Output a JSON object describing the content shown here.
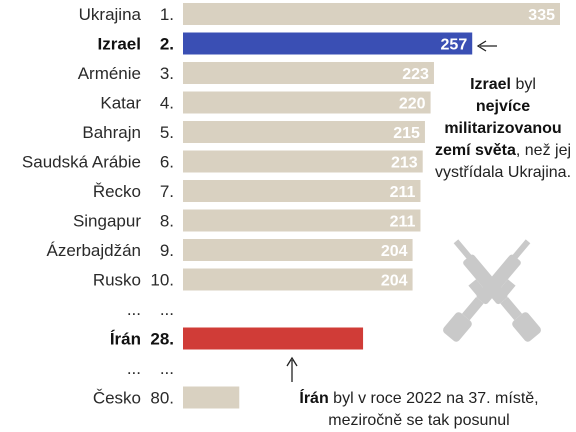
{
  "chart_data": {
    "type": "bar",
    "orientation": "horizontal",
    "rows": [
      {
        "country": "Ukrajina",
        "rank": "1.",
        "value": 335,
        "label": "335",
        "highlight": false
      },
      {
        "country": "Izrael",
        "rank": "2.",
        "value": 257,
        "label": "257",
        "highlight": true,
        "color": "#3a4fb4"
      },
      {
        "country": "Arménie",
        "rank": "3.",
        "value": 223,
        "label": "223",
        "highlight": false
      },
      {
        "country": "Katar",
        "rank": "4.",
        "value": 220,
        "label": "220",
        "highlight": false
      },
      {
        "country": "Bahrajn",
        "rank": "5.",
        "value": 215,
        "label": "215",
        "highlight": false
      },
      {
        "country": "Saudská Arábie",
        "rank": "6.",
        "value": 213,
        "label": "213",
        "highlight": false
      },
      {
        "country": "Řecko",
        "rank": "7.",
        "value": 211,
        "label": "211",
        "highlight": false
      },
      {
        "country": "Singapur",
        "rank": "8.",
        "value": 211,
        "label": "211",
        "highlight": false
      },
      {
        "country": "Ázerbajdžán",
        "rank": "9.",
        "value": 204,
        "label": "204",
        "highlight": false
      },
      {
        "country": "Rusko",
        "rank": "10.",
        "value": 204,
        "label": "204",
        "highlight": false
      },
      {
        "country": "...",
        "rank": "...",
        "value": null,
        "label": "",
        "highlight": false,
        "gap": true
      },
      {
        "country": "Írán",
        "rank": "28.",
        "value": 160,
        "label": "",
        "highlight": true,
        "color": "#d03c37"
      },
      {
        "country": "...",
        "rank": "...",
        "value": null,
        "label": "",
        "highlight": false,
        "gap": true
      },
      {
        "country": "Česko",
        "rank": "80.",
        "value": 50,
        "label": "",
        "highlight": false
      }
    ],
    "xlim": [
      0,
      335
    ],
    "default_bar_color": "#d9d1c1",
    "grid": false,
    "legend": "none"
  },
  "annotations": {
    "israel": {
      "bold1": "Izrael",
      "text1": " byl",
      "bold2": "nejvíce militarizovanou zemí světa",
      "text2": ", než jej vystřídala Ukrajina."
    },
    "iran": {
      "bold1": "Írán",
      "text1": " byl v roce 2022 na 37. místě, meziročně se tak posunul"
    }
  },
  "icons": {
    "decor": "crossed-rifles-icon",
    "decor_color": "#c8c8c8"
  }
}
